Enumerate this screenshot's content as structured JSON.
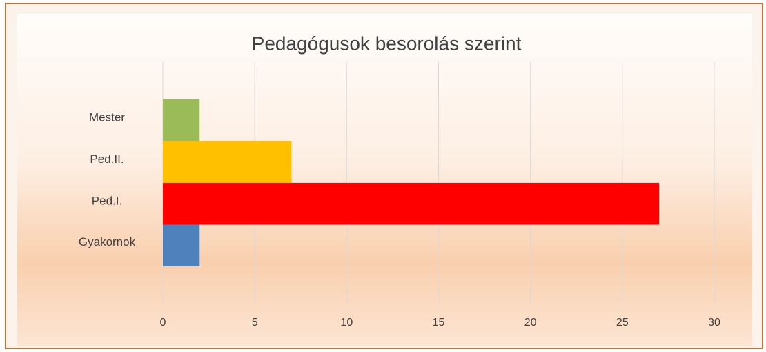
{
  "chart_data": {
    "type": "bar",
    "orientation": "horizontal",
    "title": "Pedagógusok besorolás szerint",
    "categories": [
      "Gyakornok",
      "Ped.I.",
      "Ped.II.",
      "Mester"
    ],
    "values": [
      2,
      27,
      7,
      2
    ],
    "colors": [
      "#4f81bd",
      "#ff0000",
      "#ffc000",
      "#9bbb59"
    ],
    "xlim": [
      0,
      30
    ],
    "xticks": [
      0,
      5,
      10,
      15,
      20,
      25,
      30
    ],
    "grid": true
  }
}
